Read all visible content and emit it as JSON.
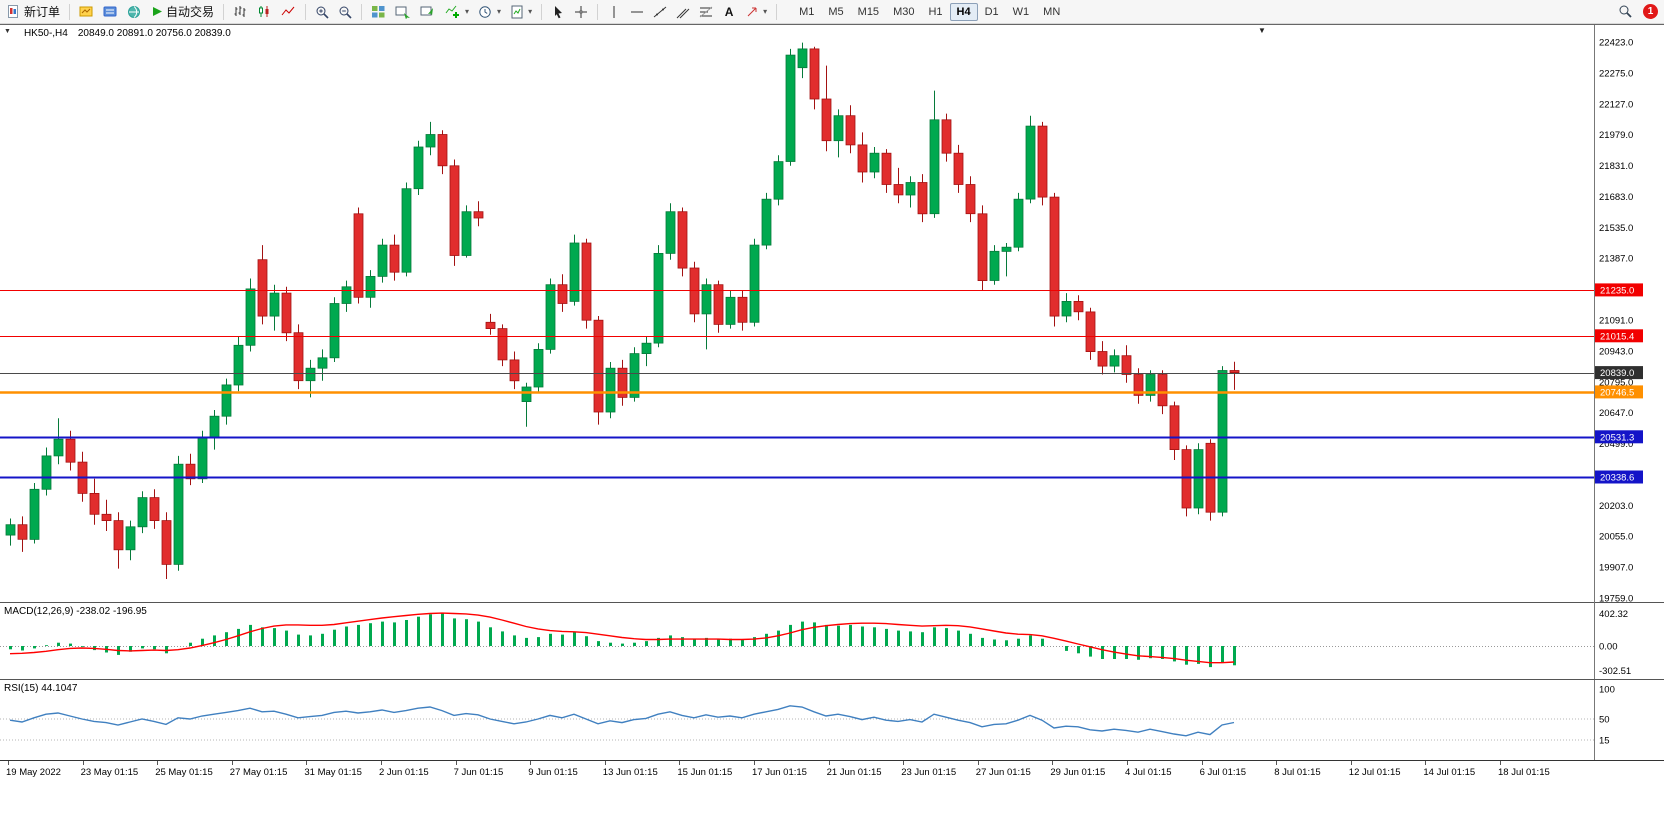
{
  "toolbar": {
    "new_order_label": "新订单",
    "auto_trading_label": "自动交易",
    "text_tool_label": "A",
    "timeframes": [
      "M1",
      "M5",
      "M15",
      "M30",
      "H1",
      "H4",
      "D1",
      "W1",
      "MN"
    ],
    "active_timeframe": "H4",
    "notification_count": "1"
  },
  "chart_data": {
    "type": "candlestick",
    "symbol_title": "HK50-,H4",
    "ohlc_line": "20849.0 20891.0 20756.0 20839.0",
    "colors": {
      "up": "#00a94f",
      "up_edge": "#067a3a",
      "down": "#e12d2d",
      "down_edge": "#a31212",
      "macd_hist": "#00a94f",
      "macd_signal": "#ff0000",
      "rsi_line": "#4080c0"
    },
    "price_axis_labels": [
      "22423.0",
      "22275.0",
      "22127.0",
      "21979.0",
      "21831.0",
      "21683.0",
      "21535.0",
      "21387.0",
      "21239.0",
      "21091.0",
      "20943.0",
      "20795.0",
      "20647.0",
      "20499.0",
      "20351.0",
      "20203.0",
      "20055.0",
      "19907.0",
      "19759.0"
    ],
    "levels": [
      {
        "label": "21235.0",
        "price": 21235.0,
        "color": "#f20000",
        "badge": "#f20000",
        "w": 1
      },
      {
        "label": "21015.4",
        "price": 21015.4,
        "color": "#f20000",
        "badge": "#f20000",
        "w": 1
      },
      {
        "label": "20839.0",
        "price": 20839.0,
        "color": "#4a4a4a",
        "badge": "#2f2f2f",
        "w": 1
      },
      {
        "label": "20746.5",
        "price": 20746.5,
        "color": "#ff9000",
        "badge": "#ff9000",
        "w": 2.5
      },
      {
        "label": "20531.3",
        "price": 20531.3,
        "color": "#1414c8",
        "badge": "#1414c8",
        "w": 2
      },
      {
        "label": "20338.6",
        "price": 20338.6,
        "color": "#1414c8",
        "badge": "#1414c8",
        "w": 2
      }
    ],
    "time_labels": [
      "19 May 2022",
      "23 May 01:15",
      "25 May 01:15",
      "27 May 01:15",
      "31 May 01:15",
      "2 Jun 01:15",
      "7 Jun 01:15",
      "9 Jun 01:15",
      "13 Jun 01:15",
      "15 Jun 01:15",
      "17 Jun 01:15",
      "21 Jun 01:15",
      "23 Jun 01:15",
      "27 Jun 01:15",
      "29 Jun 01:15",
      "4 Jul 01:15",
      "6 Jul 01:15",
      "8 Jul 01:15",
      "12 Jul 01:15",
      "14 Jul 01:15",
      "18 Jul 01:15"
    ],
    "candles": [
      [
        20060,
        20140,
        20010,
        20110
      ],
      [
        20110,
        20150,
        19980,
        20040
      ],
      [
        20040,
        20310,
        20020,
        20280
      ],
      [
        20280,
        20480,
        20250,
        20440
      ],
      [
        20440,
        20620,
        20400,
        20520
      ],
      [
        20520,
        20560,
        20370,
        20410
      ],
      [
        20410,
        20460,
        20220,
        20260
      ],
      [
        20260,
        20330,
        20110,
        20160
      ],
      [
        20160,
        20230,
        20080,
        20130
      ],
      [
        20130,
        20170,
        19900,
        19990
      ],
      [
        19990,
        20130,
        19940,
        20100
      ],
      [
        20100,
        20270,
        20070,
        20240
      ],
      [
        20240,
        20280,
        20090,
        20130
      ],
      [
        20130,
        20170,
        19850,
        19920
      ],
      [
        19920,
        20440,
        19890,
        20400
      ],
      [
        20400,
        20450,
        20300,
        20330
      ],
      [
        20330,
        20560,
        20310,
        20530
      ],
      [
        20530,
        20660,
        20470,
        20630
      ],
      [
        20630,
        20810,
        20590,
        20780
      ],
      [
        20780,
        21010,
        20750,
        20970
      ],
      [
        20970,
        21290,
        20940,
        21240
      ],
      [
        21380,
        21450,
        21070,
        21110
      ],
      [
        21110,
        21260,
        21040,
        21220
      ],
      [
        21220,
        21250,
        20990,
        21030
      ],
      [
        21030,
        21070,
        20760,
        20800
      ],
      [
        20800,
        20900,
        20720,
        20860
      ],
      [
        20860,
        20950,
        20800,
        20910
      ],
      [
        20910,
        21200,
        20890,
        21170
      ],
      [
        21170,
        21280,
        21130,
        21250
      ],
      [
        21600,
        21630,
        21170,
        21200
      ],
      [
        21200,
        21330,
        21150,
        21300
      ],
      [
        21300,
        21480,
        21270,
        21450
      ],
      [
        21450,
        21500,
        21280,
        21320
      ],
      [
        21320,
        21750,
        21300,
        21720
      ],
      [
        21720,
        21950,
        21690,
        21920
      ],
      [
        21920,
        22040,
        21880,
        21980
      ],
      [
        21980,
        22000,
        21790,
        21830
      ],
      [
        21830,
        21860,
        21350,
        21400
      ],
      [
        21400,
        21640,
        21390,
        21610
      ],
      [
        21610,
        21660,
        21540,
        21580
      ],
      [
        21080,
        21120,
        21020,
        21050
      ],
      [
        21050,
        21070,
        20870,
        20900
      ],
      [
        20900,
        20940,
        20760,
        20800
      ],
      [
        20700,
        20790,
        20580,
        20770
      ],
      [
        20770,
        20980,
        20740,
        20950
      ],
      [
        20950,
        21290,
        20930,
        21260
      ],
      [
        21260,
        21310,
        21130,
        21170
      ],
      [
        21180,
        21500,
        21160,
        21460
      ],
      [
        21460,
        21480,
        21050,
        21090
      ],
      [
        21090,
        21110,
        20590,
        20650
      ],
      [
        20650,
        20890,
        20620,
        20860
      ],
      [
        20860,
        20900,
        20680,
        20720
      ],
      [
        20720,
        20960,
        20700,
        20930
      ],
      [
        20930,
        21010,
        20870,
        20980
      ],
      [
        20980,
        21450,
        20960,
        21410
      ],
      [
        21410,
        21650,
        21380,
        21610
      ],
      [
        21610,
        21630,
        21300,
        21340
      ],
      [
        21340,
        21370,
        21080,
        21120
      ],
      [
        21120,
        21290,
        20950,
        21260
      ],
      [
        21260,
        21280,
        21030,
        21070
      ],
      [
        21070,
        21230,
        21050,
        21200
      ],
      [
        21200,
        21230,
        21040,
        21080
      ],
      [
        21080,
        21480,
        21060,
        21450
      ],
      [
        21450,
        21700,
        21430,
        21670
      ],
      [
        21670,
        21880,
        21640,
        21850
      ],
      [
        21850,
        22390,
        21830,
        22360
      ],
      [
        22300,
        22420,
        22250,
        22390
      ],
      [
        22390,
        22400,
        22100,
        22150
      ],
      [
        22150,
        22310,
        21900,
        21950
      ],
      [
        21950,
        22100,
        21870,
        22070
      ],
      [
        22070,
        22120,
        21890,
        21930
      ],
      [
        21930,
        21990,
        21750,
        21800
      ],
      [
        21800,
        21920,
        21770,
        21890
      ],
      [
        21890,
        21910,
        21700,
        21740
      ],
      [
        21740,
        21820,
        21650,
        21690
      ],
      [
        21690,
        21780,
        21630,
        21750
      ],
      [
        21750,
        21790,
        21560,
        21600
      ],
      [
        21600,
        22190,
        21580,
        22050
      ],
      [
        22050,
        22080,
        21850,
        21890
      ],
      [
        21890,
        21930,
        21700,
        21740
      ],
      [
        21740,
        21780,
        21560,
        21600
      ],
      [
        21600,
        21640,
        21230,
        21280
      ],
      [
        21280,
        21450,
        21260,
        21420
      ],
      [
        21420,
        21460,
        21300,
        21440
      ],
      [
        21440,
        21700,
        21420,
        21670
      ],
      [
        21670,
        22070,
        21650,
        22020
      ],
      [
        22020,
        22040,
        21640,
        21680
      ],
      [
        21680,
        21700,
        21060,
        21110
      ],
      [
        21110,
        21220,
        21080,
        21180
      ],
      [
        21180,
        21210,
        21090,
        21130
      ],
      [
        21130,
        21150,
        20900,
        20940
      ],
      [
        20940,
        20990,
        20830,
        20870
      ],
      [
        20870,
        20950,
        20840,
        20920
      ],
      [
        20920,
        20970,
        20790,
        20830
      ],
      [
        20830,
        20860,
        20690,
        20730
      ],
      [
        20730,
        20850,
        20700,
        20830
      ],
      [
        20830,
        20850,
        20640,
        20680
      ],
      [
        20680,
        20700,
        20420,
        20470
      ],
      [
        20470,
        20490,
        20150,
        20190
      ],
      [
        20190,
        20500,
        20160,
        20470
      ],
      [
        20500,
        20520,
        20130,
        20170
      ],
      [
        20170,
        20870,
        20150,
        20849
      ],
      [
        20849,
        20891,
        20756,
        20839
      ]
    ],
    "macd": {
      "label": "MACD(12,26,9) -238.02 -196.95",
      "axis_labels": [
        "402.32",
        "0.00",
        "-302.51"
      ],
      "histogram": [
        -40,
        -55,
        -30,
        10,
        40,
        30,
        -10,
        -50,
        -80,
        -110,
        -70,
        -30,
        -40,
        -90,
        0,
        40,
        90,
        130,
        170,
        210,
        260,
        230,
        220,
        190,
        140,
        130,
        150,
        200,
        240,
        260,
        280,
        300,
        290,
        320,
        360,
        390,
        400,
        340,
        330,
        300,
        230,
        180,
        130,
        100,
        110,
        150,
        140,
        170,
        120,
        60,
        40,
        30,
        40,
        60,
        100,
        130,
        110,
        90,
        100,
        90,
        90,
        80,
        110,
        150,
        190,
        260,
        300,
        290,
        260,
        250,
        260,
        240,
        230,
        210,
        190,
        180,
        170,
        230,
        220,
        190,
        150,
        100,
        80,
        70,
        90,
        130,
        90,
        0,
        -60,
        -90,
        -130,
        -160,
        -160,
        -160,
        -170,
        -150,
        -160,
        -190,
        -230,
        -220,
        -260,
        -200,
        -238
      ],
      "signal": [
        -95,
        -90,
        -80,
        -65,
        -45,
        -30,
        -25,
        -30,
        -40,
        -55,
        -60,
        -55,
        -50,
        -55,
        -45,
        -25,
        5,
        40,
        80,
        125,
        175,
        215,
        245,
        260,
        260,
        255,
        255,
        265,
        285,
        305,
        325,
        345,
        360,
        375,
        390,
        400,
        405,
        400,
        395,
        380,
        355,
        320,
        280,
        240,
        210,
        190,
        180,
        175,
        165,
        145,
        125,
        105,
        90,
        80,
        80,
        85,
        85,
        85,
        85,
        85,
        80,
        80,
        85,
        100,
        125,
        160,
        200,
        230,
        250,
        265,
        275,
        280,
        280,
        275,
        265,
        255,
        245,
        250,
        255,
        250,
        235,
        210,
        185,
        160,
        145,
        140,
        125,
        95,
        60,
        25,
        -10,
        -45,
        -75,
        -100,
        -120,
        -130,
        -140,
        -155,
        -175,
        -190,
        -205,
        -205,
        -197
      ]
    },
    "rsi": {
      "label": "RSI(15) 44.1047",
      "axis_labels": [
        "100",
        "50",
        "15"
      ],
      "values": [
        48,
        45,
        52,
        58,
        60,
        55,
        50,
        46,
        44,
        40,
        45,
        50,
        46,
        41,
        52,
        50,
        55,
        58,
        61,
        64,
        68,
        62,
        63,
        58,
        52,
        54,
        56,
        61,
        63,
        60,
        62,
        65,
        61,
        64,
        68,
        70,
        64,
        56,
        59,
        57,
        50,
        46,
        42,
        45,
        50,
        56,
        52,
        58,
        50,
        42,
        47,
        44,
        49,
        51,
        58,
        62,
        56,
        52,
        57,
        53,
        55,
        52,
        58,
        62,
        66,
        72,
        70,
        62,
        55,
        58,
        54,
        49,
        53,
        48,
        46,
        49,
        45,
        58,
        53,
        48,
        44,
        37,
        41,
        42,
        48,
        56,
        48,
        35,
        38,
        37,
        32,
        30,
        33,
        31,
        28,
        33,
        29,
        25,
        22,
        28,
        24,
        40,
        44.1
      ]
    }
  }
}
